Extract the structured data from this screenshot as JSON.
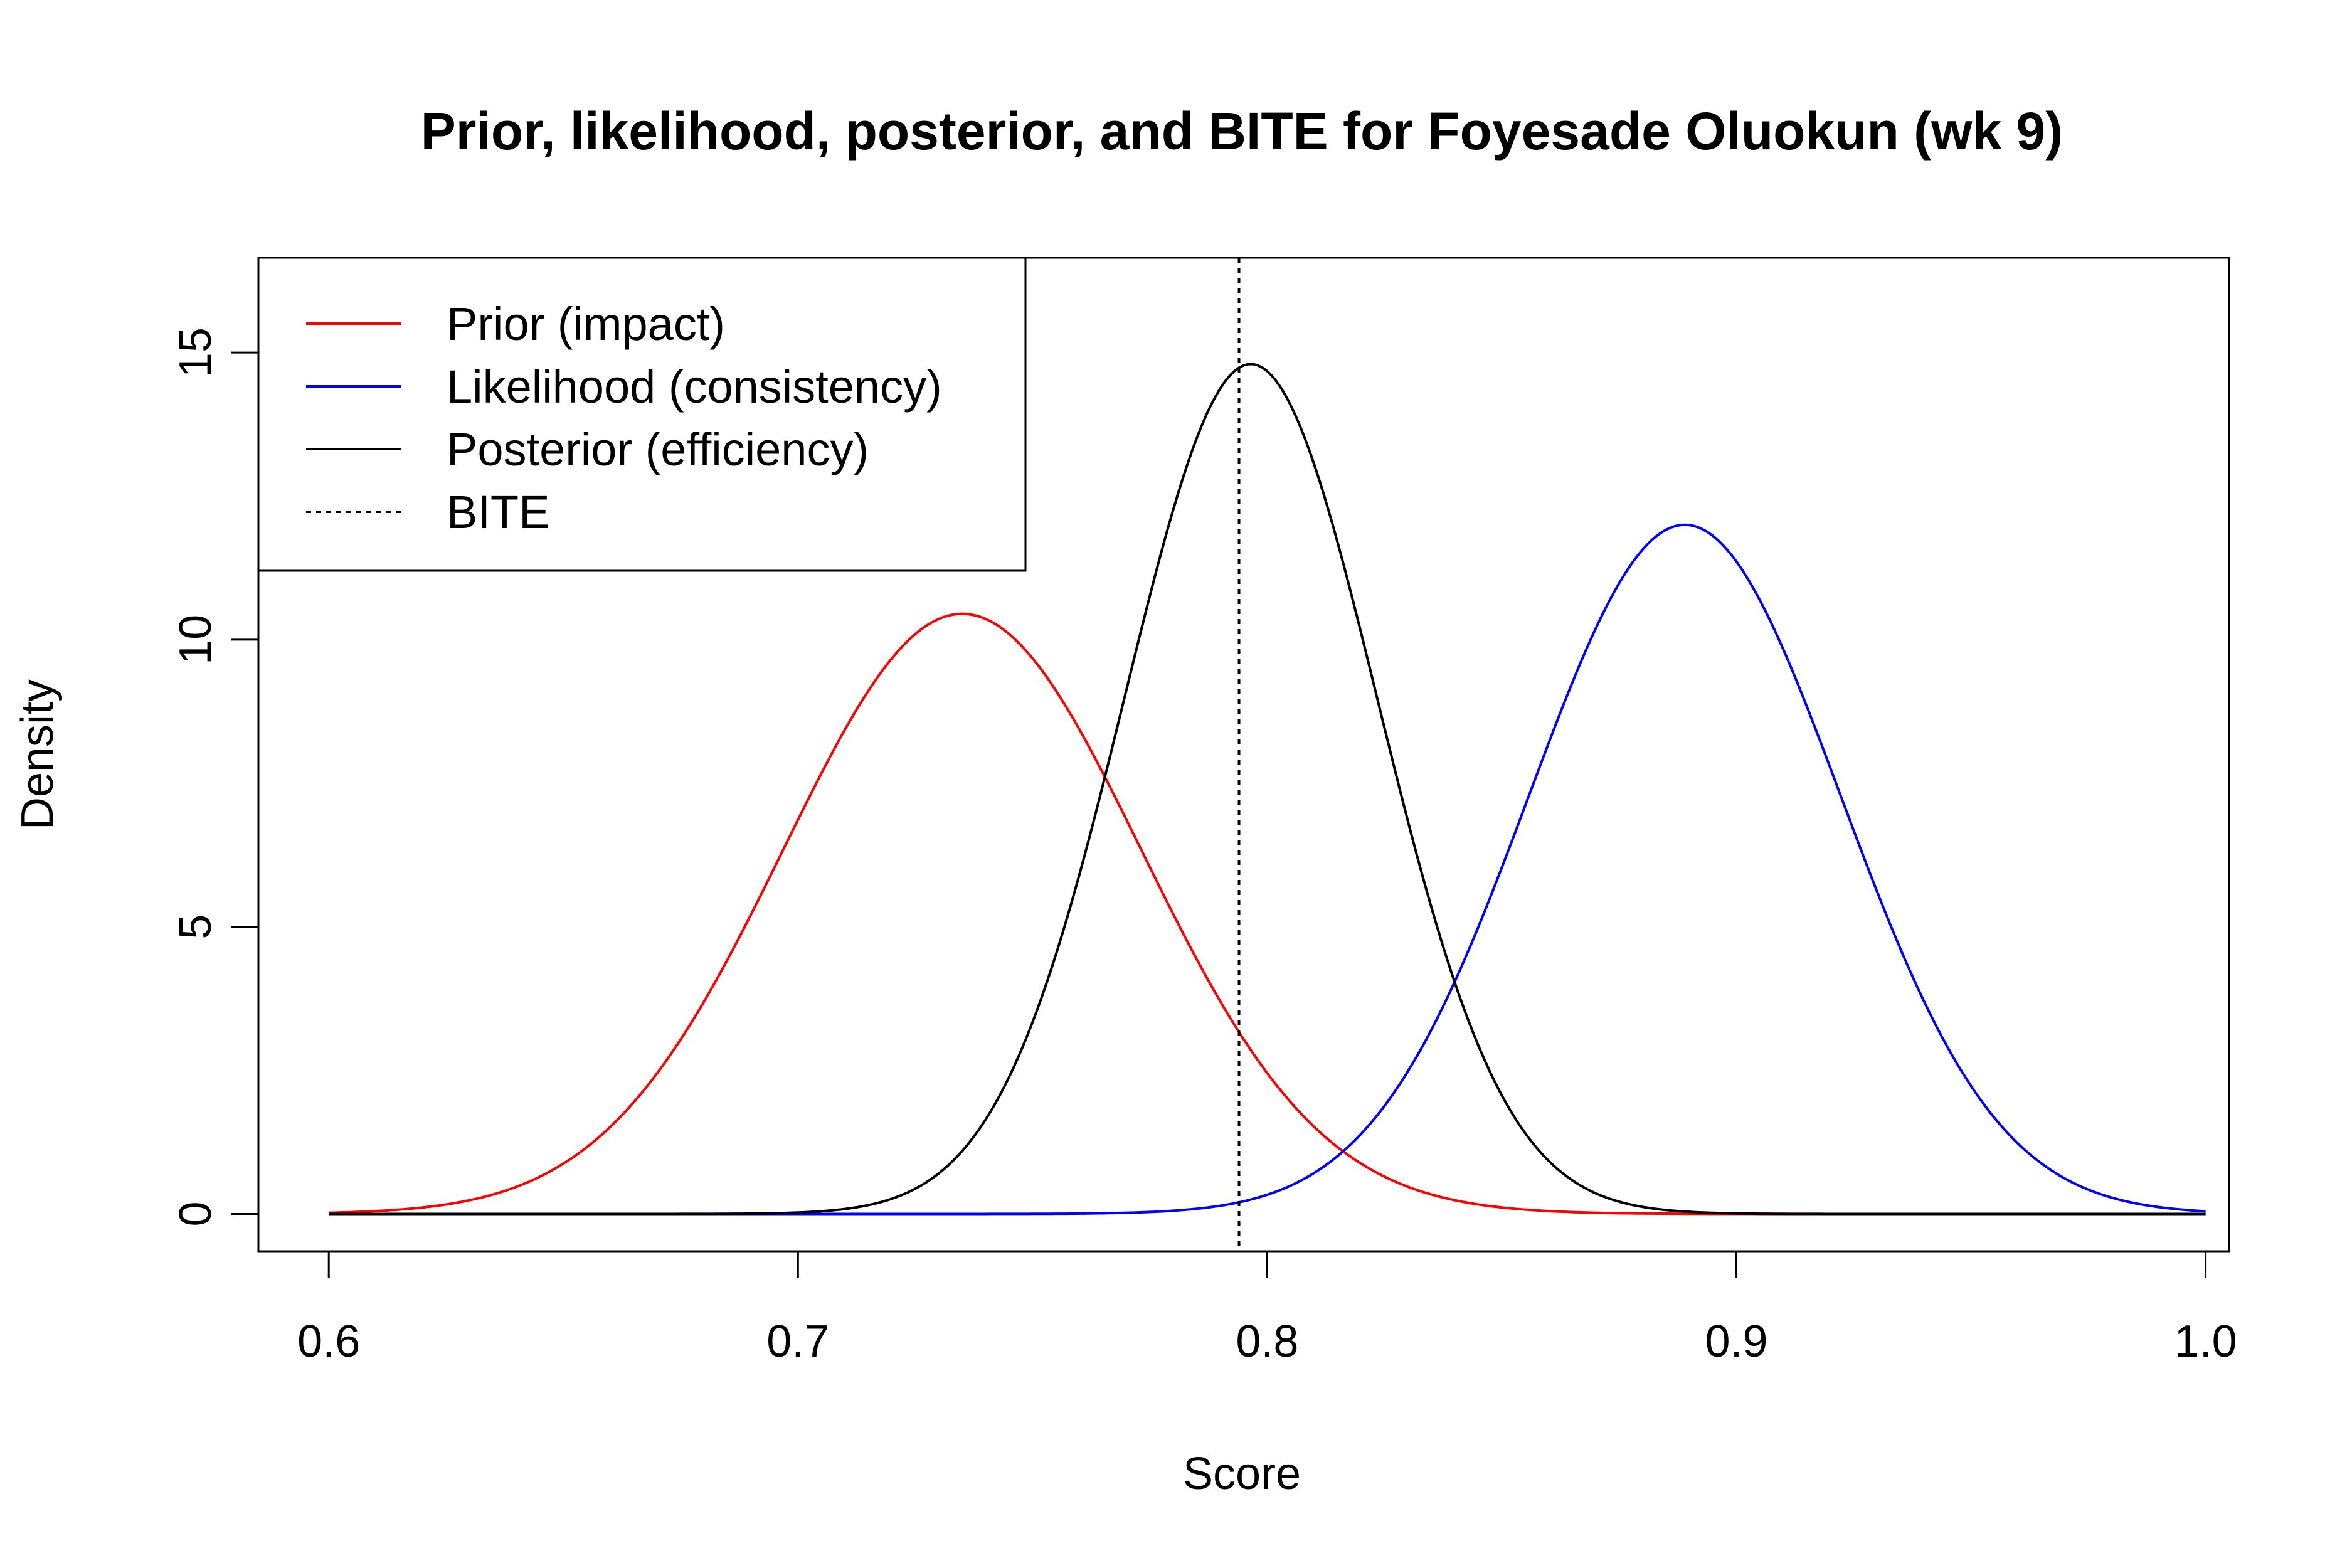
{
  "chart_data": {
    "type": "line",
    "title": "Prior, likelihood, posterior, and BITE for Foyesade Oluokun (wk 9)",
    "xlabel": "Score",
    "ylabel": "Density",
    "xlim": [
      0.585,
      1.005
    ],
    "ylim": [
      -0.65,
      16.65
    ],
    "x_ticks": [
      0.6,
      0.7,
      0.8,
      0.9,
      1.0
    ],
    "x_tick_labels": [
      "0.6",
      "0.7",
      "0.8",
      "0.9",
      "1.0"
    ],
    "y_ticks": [
      0,
      5,
      10,
      15
    ],
    "y_tick_labels": [
      "0",
      "5",
      "10",
      "15"
    ],
    "series": [
      {
        "name": "Prior (impact)",
        "color": "#ff0000",
        "style": "solid",
        "mean": 0.735,
        "peak_density": 10.45,
        "x_range": [
          0.6,
          1.0
        ]
      },
      {
        "name": "Likelihood (consistency)",
        "color": "#0000ff",
        "style": "solid",
        "mean": 0.889,
        "peak_density": 12.0,
        "x_range": [
          0.6,
          1.0
        ]
      },
      {
        "name": "Posterior (efficiency)",
        "color": "#000000",
        "style": "solid",
        "mean": 0.7965,
        "peak_density": 14.8,
        "x_range": [
          0.6,
          1.0
        ]
      }
    ],
    "reference_lines": [
      {
        "name": "BITE",
        "orientation": "vertical",
        "x": 0.794,
        "color": "#000000",
        "style": "dotted"
      }
    ],
    "legend": {
      "position": "top-left",
      "entries": [
        {
          "label": "Prior (impact)",
          "color": "#ff0000",
          "style": "solid"
        },
        {
          "label": "Likelihood (consistency)",
          "color": "#0000ff",
          "style": "solid"
        },
        {
          "label": "Posterior (efficiency)",
          "color": "#000000",
          "style": "solid"
        },
        {
          "label": "BITE",
          "color": "#000000",
          "style": "dotted"
        }
      ]
    },
    "grid": false
  }
}
